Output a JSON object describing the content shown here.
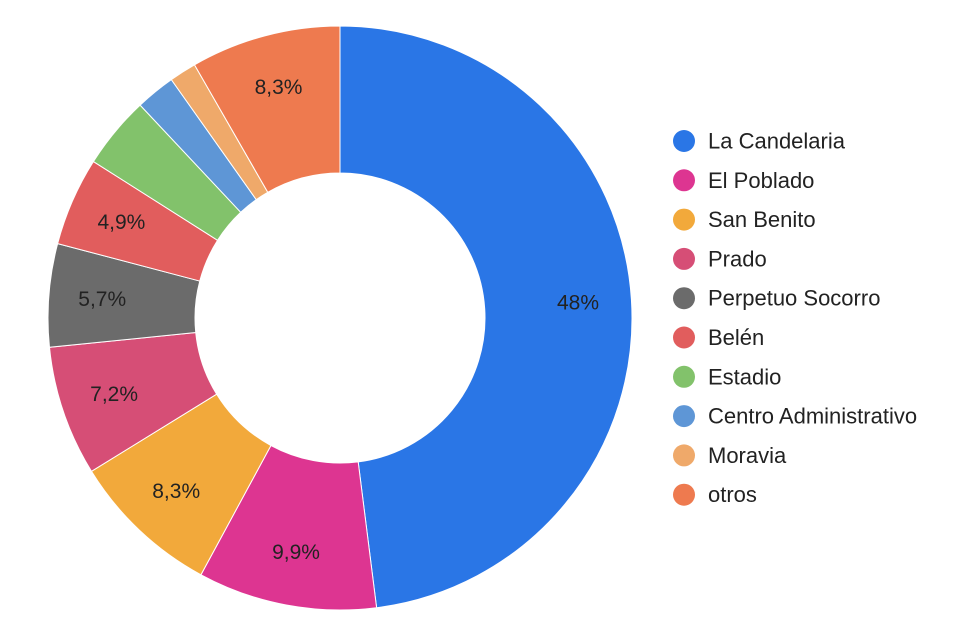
{
  "chart_data": {
    "type": "pie",
    "variant": "donut",
    "title": "",
    "legend_position": "right",
    "slices": [
      {
        "name": "La Candelaria",
        "value": 48.0,
        "label": "48%",
        "color": "#2a76e6"
      },
      {
        "name": "El Poblado",
        "value": 9.9,
        "label": "9,9%",
        "color": "#dd3591"
      },
      {
        "name": "San Benito",
        "value": 8.3,
        "label": "8,3%",
        "color": "#f2a93b"
      },
      {
        "name": "Prado",
        "value": 7.2,
        "label": "7,2%",
        "color": "#d64e76"
      },
      {
        "name": "Perpetuo Socorro",
        "value": 5.7,
        "label": "5,7%",
        "color": "#6b6b6b"
      },
      {
        "name": "Belén",
        "value": 4.9,
        "label": "4,9%",
        "color": "#e15d5d"
      },
      {
        "name": "Estadio",
        "value": 4.0,
        "label": "",
        "color": "#82c26b"
      },
      {
        "name": "Centro Administrativo",
        "value": 2.2,
        "label": "",
        "color": "#5e96d6"
      },
      {
        "name": "Moravia",
        "value": 1.5,
        "label": "",
        "color": "#efa96a"
      },
      {
        "name": "otros",
        "value": 8.3,
        "label": "8,3%",
        "color": "#ee7a4f"
      }
    ]
  }
}
